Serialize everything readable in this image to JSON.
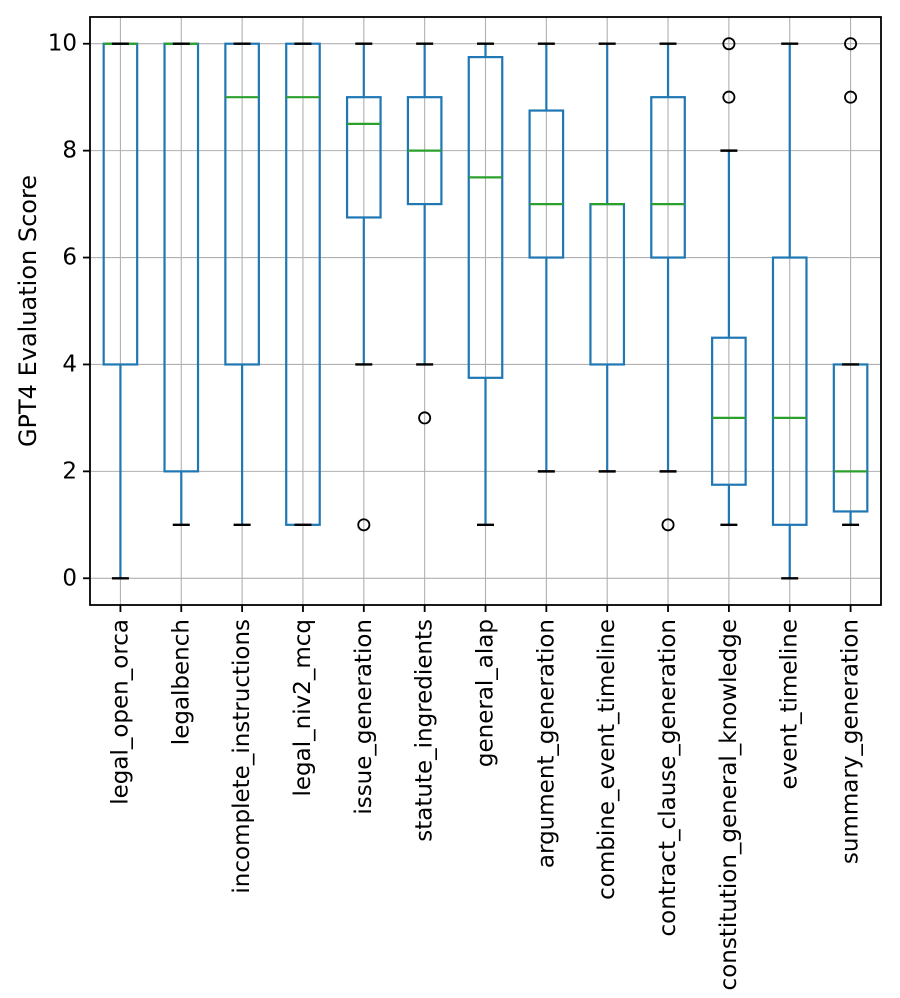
{
  "chart_data": {
    "type": "box",
    "title": "",
    "xlabel": "",
    "ylabel": "GPT4 Evaluation Score",
    "ylim": [
      -0.5,
      10.5
    ],
    "yticks": [
      0,
      2,
      4,
      6,
      8,
      10
    ],
    "grid": true,
    "legend": "none",
    "categories": [
      "legal_open_orca",
      "legalbench",
      "incomplete_instructions",
      "legal_niv2_mcq",
      "issue_generation",
      "statute_ingredients",
      "general_alap",
      "argument_generation",
      "combine_event_timeline",
      "contract_clause_generation",
      "constitution_general_knowledge",
      "event_timeline",
      "summary_generation"
    ],
    "series": [
      {
        "name": "legal_open_orca",
        "whislo": 0,
        "q1": 4,
        "med": 10,
        "q3": 10,
        "whishi": 10,
        "fliers": []
      },
      {
        "name": "legalbench",
        "whislo": 1,
        "q1": 2,
        "med": 10,
        "q3": 10,
        "whishi": 10,
        "fliers": []
      },
      {
        "name": "incomplete_instructions",
        "whislo": 1,
        "q1": 4,
        "med": 9,
        "q3": 10,
        "whishi": 10,
        "fliers": []
      },
      {
        "name": "legal_niv2_mcq",
        "whislo": 1,
        "q1": 1,
        "med": 9,
        "q3": 10,
        "whishi": 10,
        "fliers": []
      },
      {
        "name": "issue_generation",
        "whislo": 4,
        "q1": 6.75,
        "med": 8.5,
        "q3": 9,
        "whishi": 10,
        "fliers": [
          1
        ]
      },
      {
        "name": "statute_ingredients",
        "whislo": 4,
        "q1": 7,
        "med": 8,
        "q3": 9,
        "whishi": 10,
        "fliers": [
          3
        ]
      },
      {
        "name": "general_alap",
        "whislo": 1,
        "q1": 3.75,
        "med": 7.5,
        "q3": 9.75,
        "whishi": 10,
        "fliers": []
      },
      {
        "name": "argument_generation",
        "whislo": 2,
        "q1": 6,
        "med": 7,
        "q3": 8.75,
        "whishi": 10,
        "fliers": []
      },
      {
        "name": "combine_event_timeline",
        "whislo": 2,
        "q1": 4,
        "med": 7,
        "q3": 7,
        "whishi": 10,
        "fliers": []
      },
      {
        "name": "contract_clause_generation",
        "whislo": 2,
        "q1": 6,
        "med": 7,
        "q3": 9,
        "whishi": 10,
        "fliers": [
          1
        ]
      },
      {
        "name": "constitution_general_knowledge",
        "whislo": 1,
        "q1": 1.75,
        "med": 3,
        "q3": 4.5,
        "whishi": 8,
        "fliers": [
          9,
          10
        ]
      },
      {
        "name": "event_timeline",
        "whislo": 0,
        "q1": 1,
        "med": 3,
        "q3": 6,
        "whishi": 10,
        "fliers": []
      },
      {
        "name": "summary_generation",
        "whislo": 1,
        "q1": 1.25,
        "med": 2,
        "q3": 4,
        "whishi": 4,
        "fliers": [
          9,
          10
        ]
      }
    ],
    "style": {
      "box_color": "#1f77b4",
      "whisker_color": "#1f77b4",
      "median_color": "#2ca02c",
      "cap_color": "#000000",
      "flier_color": "#000000",
      "grid_color": "#b0b0b0",
      "axis_color": "#000000",
      "text_color": "#000000",
      "background_color": "#ffffff"
    }
  }
}
